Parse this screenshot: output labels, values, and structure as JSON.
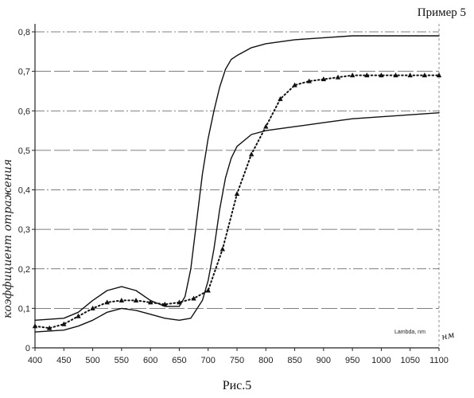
{
  "header": {
    "example_label": "Пример 5"
  },
  "caption": "Рис.5",
  "chart_data": {
    "type": "line",
    "ylabel": "коэффициент отражения",
    "xlabel": "Lambda, nm",
    "xlabel_handwritten": "нм",
    "xlim": [
      400,
      1100
    ],
    "ylim": [
      0,
      0.8
    ],
    "x_ticks": [
      "400",
      "450",
      "500",
      "550",
      "600",
      "650",
      "700",
      "750",
      "800",
      "850",
      "900",
      "950",
      "1000",
      "1050",
      "1100"
    ],
    "y_ticks": [
      "0",
      "0,1",
      "0,2",
      "0,3",
      "0,4",
      "0,5",
      "0,6",
      "0,7",
      "0,8"
    ],
    "grid": "horizontal",
    "series": [
      {
        "style": "solid",
        "x": [
          400,
          450,
          475,
          500,
          525,
          550,
          575,
          600,
          625,
          650,
          660,
          670,
          680,
          690,
          700,
          710,
          720,
          730,
          740,
          750,
          775,
          800,
          850,
          900,
          950,
          1000,
          1050,
          1100
        ],
        "y": [
          0.07,
          0.075,
          0.09,
          0.12,
          0.145,
          0.155,
          0.145,
          0.12,
          0.105,
          0.105,
          0.13,
          0.2,
          0.32,
          0.44,
          0.53,
          0.6,
          0.66,
          0.705,
          0.73,
          0.74,
          0.76,
          0.77,
          0.78,
          0.785,
          0.79,
          0.79,
          0.79,
          0.79
        ]
      },
      {
        "style": "solid",
        "x": [
          400,
          450,
          475,
          500,
          525,
          550,
          575,
          600,
          625,
          650,
          670,
          690,
          700,
          710,
          720,
          730,
          740,
          750,
          775,
          800,
          850,
          900,
          950,
          1000,
          1050,
          1100
        ],
        "y": [
          0.04,
          0.045,
          0.055,
          0.07,
          0.09,
          0.1,
          0.095,
          0.085,
          0.075,
          0.07,
          0.075,
          0.12,
          0.17,
          0.25,
          0.35,
          0.43,
          0.48,
          0.51,
          0.54,
          0.55,
          0.56,
          0.57,
          0.58,
          0.585,
          0.59,
          0.595
        ]
      },
      {
        "style": "dotted-triangles",
        "x": [
          400,
          425,
          450,
          475,
          500,
          525,
          550,
          575,
          600,
          625,
          650,
          675,
          700,
          725,
          750,
          775,
          800,
          825,
          850,
          875,
          900,
          925,
          950,
          975,
          1000,
          1025,
          1050,
          1075,
          1100
        ],
        "y": [
          0.055,
          0.05,
          0.06,
          0.08,
          0.1,
          0.115,
          0.12,
          0.12,
          0.115,
          0.11,
          0.115,
          0.125,
          0.145,
          0.25,
          0.39,
          0.49,
          0.56,
          0.63,
          0.665,
          0.675,
          0.68,
          0.685,
          0.69,
          0.69,
          0.69,
          0.69,
          0.69,
          0.69,
          0.69
        ]
      }
    ]
  }
}
